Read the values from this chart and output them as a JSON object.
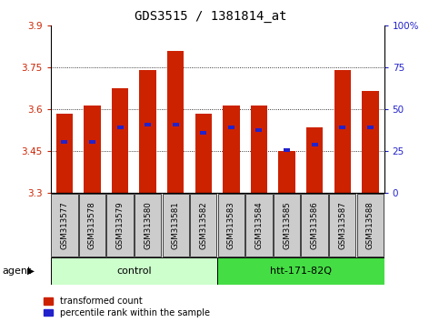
{
  "title": "GDS3515 / 1381814_at",
  "samples": [
    "GSM313577",
    "GSM313578",
    "GSM313579",
    "GSM313580",
    "GSM313581",
    "GSM313582",
    "GSM313583",
    "GSM313584",
    "GSM313585",
    "GSM313586",
    "GSM313587",
    "GSM313588"
  ],
  "red_values": [
    3.585,
    3.615,
    3.675,
    3.74,
    3.81,
    3.585,
    3.615,
    3.615,
    3.45,
    3.535,
    3.74,
    3.665
  ],
  "blue_values": [
    3.485,
    3.485,
    3.535,
    3.545,
    3.545,
    3.515,
    3.535,
    3.525,
    3.455,
    3.475,
    3.535,
    3.535
  ],
  "ymin": 3.3,
  "ymax": 3.9,
  "yticks": [
    3.3,
    3.45,
    3.6,
    3.75,
    3.9
  ],
  "y2ticks": [
    0,
    25,
    50,
    75,
    100
  ],
  "y2labels": [
    "0",
    "25",
    "50",
    "75",
    "100%"
  ],
  "bar_width": 0.6,
  "red_color": "#cc2200",
  "blue_color": "#2222cc",
  "control_color": "#ccffcc",
  "treatment_color": "#44dd44",
  "label_bg_color": "#cccccc",
  "n_control": 6,
  "n_treatment": 6,
  "agent_label": "agent",
  "control_label": "control",
  "treatment_label": "htt-171-82Q",
  "legend_red": "transformed count",
  "legend_blue": "percentile rank within the sample",
  "title_fontsize": 10,
  "tick_fontsize": 7.5,
  "label_fontsize": 8
}
